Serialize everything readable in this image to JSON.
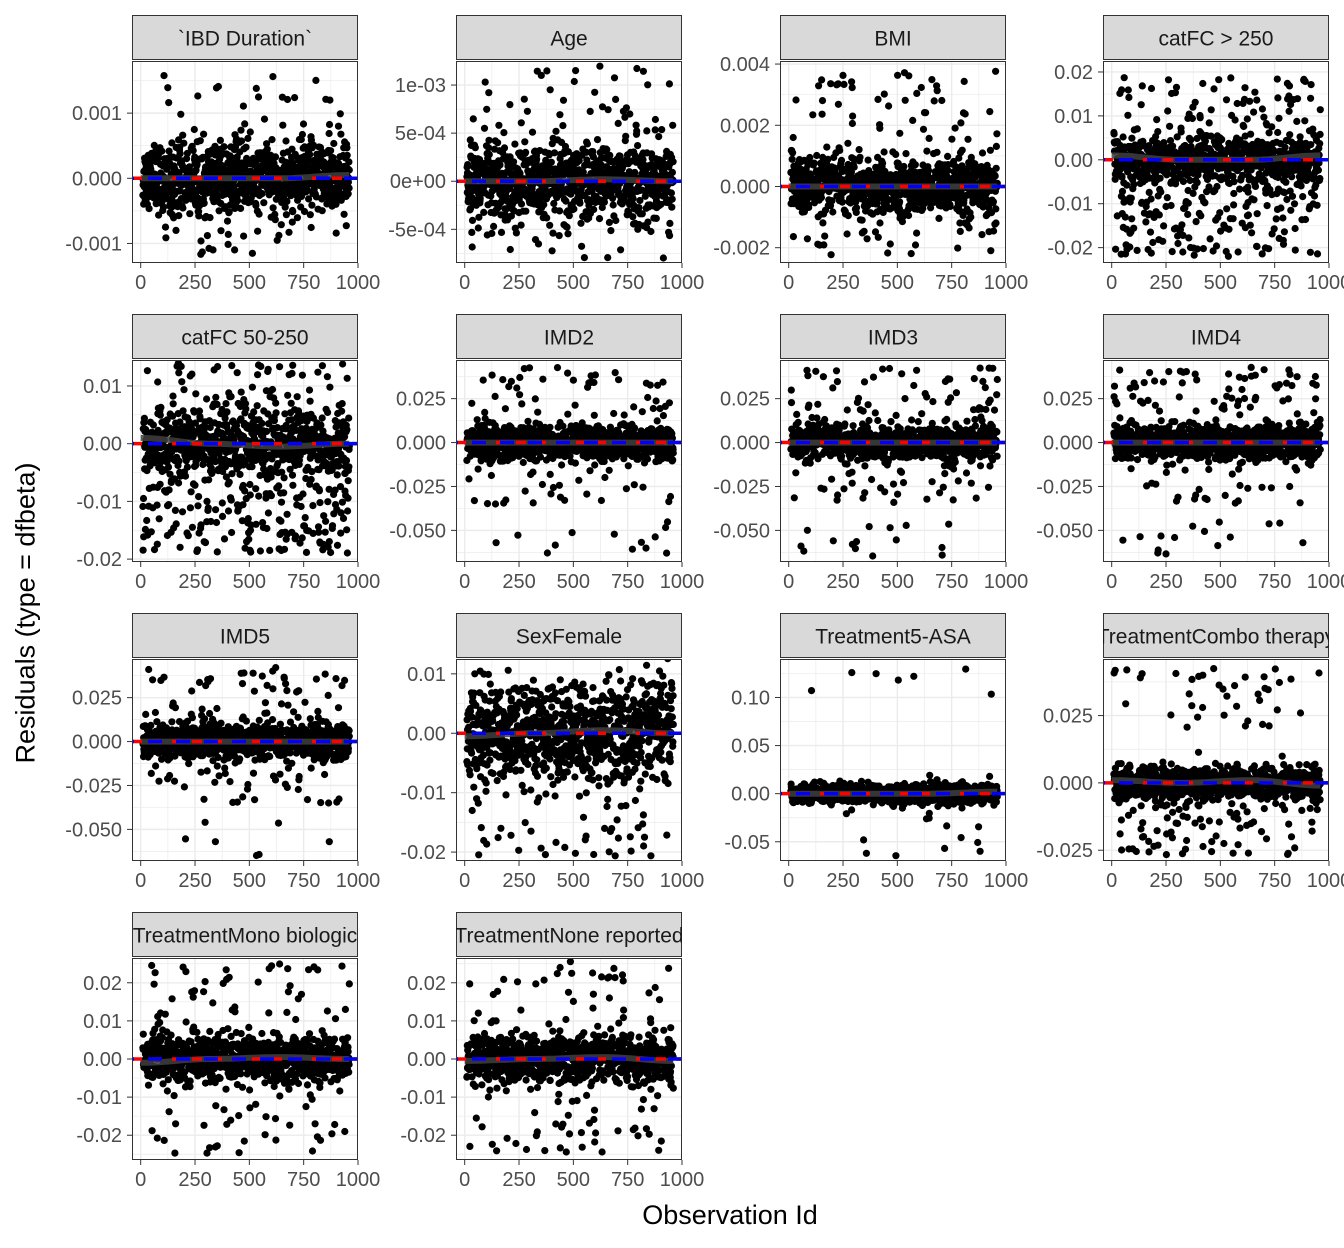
{
  "chart_data": {
    "type": "scatter",
    "xlabel": "Observation Id",
    "ylabel": "Residuals (type = dfbeta)",
    "grid": true,
    "n_observations": 960,
    "colors": {
      "points": "#000000",
      "zero_line": "#ff0000",
      "mean_line": "#0000ff",
      "smooth_line": "#404040",
      "strip_fill": "#d9d9d9",
      "strip_border": "#333333",
      "panel_border": "#333333",
      "grid": "#ebebeb"
    },
    "x_ticks": [
      0,
      250,
      500,
      750,
      1000
    ],
    "x_tick_labels": [
      "0",
      "250",
      "500",
      "750",
      "1000"
    ],
    "xlim": [
      -40,
      1000
    ],
    "panels": [
      {
        "title": "`IBD Duration`",
        "ylim": [
          -0.0013,
          0.0018
        ],
        "y_ticks": [
          -0.001,
          0.0,
          0.001
        ],
        "y_tick_labels": [
          "-0.001",
          "0.000",
          "0.001"
        ],
        "spread": 0.00025,
        "outlier_range": [
          -0.0012,
          0.0016
        ],
        "skew": "symmetric",
        "trend": [
          0.0,
          0.0,
          0.0,
          5e-05
        ]
      },
      {
        "title": "Age",
        "ylim": [
          -0.00085,
          0.00125
        ],
        "y_ticks": [
          -0.0005,
          0.0,
          0.0005,
          0.001
        ],
        "y_tick_labels": [
          "-5e-04",
          "0e+00",
          "5e-04",
          "1e-03"
        ],
        "spread": 0.00018,
        "outlier_range": [
          -0.0008,
          0.0012
        ],
        "skew": "symmetric",
        "trend": [
          0.0,
          0.0,
          2e-05,
          0.0
        ]
      },
      {
        "title": "BMI",
        "ylim": [
          -0.0025,
          0.0041
        ],
        "y_ticks": [
          -0.002,
          0.0,
          0.002,
          0.004
        ],
        "y_tick_labels": [
          "-0.002",
          "0.000",
          "0.002",
          "0.004"
        ],
        "spread": 0.00045,
        "outlier_range": [
          -0.0023,
          0.0039
        ],
        "skew": "symmetric",
        "trend": [
          0.0,
          0.0,
          0.0,
          0.0
        ]
      },
      {
        "title": "catFC > 250",
        "ylim": [
          -0.0235,
          0.0225
        ],
        "y_ticks": [
          -0.02,
          -0.01,
          0.0,
          0.01,
          0.02
        ],
        "y_tick_labels": [
          "-0.02",
          "-0.01",
          "0.00",
          "0.01",
          "0.02"
        ],
        "spread": 0.0025,
        "outlier_range": [
          -0.022,
          0.019
        ],
        "skew": "down",
        "trend": [
          0.001,
          0.0,
          0.0,
          0.001
        ]
      },
      {
        "title": "catFC 50-250",
        "ylim": [
          -0.0205,
          0.0145
        ],
        "y_ticks": [
          -0.02,
          -0.01,
          0.0,
          0.01
        ],
        "y_tick_labels": [
          "-0.02",
          "-0.01",
          "0.00",
          "0.01"
        ],
        "spread": 0.003,
        "outlier_range": [
          -0.019,
          0.014
        ],
        "skew": "down",
        "trend": [
          0.001,
          0.0,
          -0.0005,
          0.0
        ]
      },
      {
        "title": "IMD2",
        "ylim": [
          -0.068,
          0.047
        ],
        "y_ticks": [
          -0.05,
          -0.025,
          0.0,
          0.025
        ],
        "y_tick_labels": [
          "-0.050",
          "-0.025",
          "0.000",
          "0.025"
        ],
        "spread": 0.005,
        "outlier_range": [
          -0.065,
          0.043
        ],
        "skew": "imd",
        "trend": [
          0.0,
          0.0,
          0.0,
          0.0
        ]
      },
      {
        "title": "IMD3",
        "ylim": [
          -0.068,
          0.047
        ],
        "y_ticks": [
          -0.05,
          -0.025,
          0.0,
          0.025
        ],
        "y_tick_labels": [
          "-0.050",
          "-0.025",
          "0.000",
          "0.025"
        ],
        "spread": 0.005,
        "outlier_range": [
          -0.065,
          0.043
        ],
        "skew": "imd",
        "trend": [
          0.0,
          0.0,
          0.0,
          0.0
        ]
      },
      {
        "title": "IMD4",
        "ylim": [
          -0.068,
          0.047
        ],
        "y_ticks": [
          -0.05,
          -0.025,
          0.0,
          0.025
        ],
        "y_tick_labels": [
          "-0.050",
          "-0.025",
          "0.000",
          "0.025"
        ],
        "spread": 0.005,
        "outlier_range": [
          -0.065,
          0.043
        ],
        "skew": "imd",
        "trend": [
          0.0,
          0.0,
          0.0,
          0.0
        ]
      },
      {
        "title": "IMD5",
        "ylim": [
          -0.068,
          0.047
        ],
        "y_ticks": [
          -0.05,
          -0.025,
          0.0,
          0.025
        ],
        "y_tick_labels": [
          "-0.050",
          "-0.025",
          "0.000",
          "0.025"
        ],
        "spread": 0.005,
        "outlier_range": [
          -0.065,
          0.043
        ],
        "skew": "imd",
        "trend": [
          0.0,
          0.0,
          0.0,
          0.0
        ]
      },
      {
        "title": "SexFemale",
        "ylim": [
          -0.0215,
          0.0125
        ],
        "y_ticks": [
          -0.02,
          -0.01,
          0.0,
          0.01
        ],
        "y_tick_labels": [
          "-0.02",
          "-0.01",
          "0.00",
          "0.01"
        ],
        "spread": 0.004,
        "outlier_range": [
          -0.021,
          0.011
        ],
        "skew": "symmetric",
        "trend": [
          -0.0005,
          0.0,
          0.0005,
          0.0
        ]
      },
      {
        "title": "Treatment5-ASA",
        "ylim": [
          -0.07,
          0.14
        ],
        "y_ticks": [
          -0.05,
          0.0,
          0.05,
          0.1
        ],
        "y_tick_labels": [
          "-0.05",
          "0.00",
          "0.05",
          "0.10"
        ],
        "spread": 0.005,
        "outlier_range": [
          -0.065,
          0.13
        ],
        "skew": "asa",
        "trend": [
          0.0,
          0.0,
          0.0,
          0.002
        ]
      },
      {
        "title": "TreatmentCombo therapy",
        "ylim": [
          -0.029,
          0.046
        ],
        "y_ticks": [
          -0.025,
          0.0,
          0.025
        ],
        "y_tick_labels": [
          "-0.025",
          "0.000",
          "0.025"
        ],
        "spread": 0.003,
        "outlier_range": [
          -0.027,
          0.044
        ],
        "skew": "up",
        "trend": [
          0.001,
          0.0,
          0.001,
          -0.001
        ]
      },
      {
        "title": "TreatmentMono biologic",
        "ylim": [
          -0.0265,
          0.0265
        ],
        "y_ticks": [
          -0.02,
          -0.01,
          0.0,
          0.01,
          0.02
        ],
        "y_tick_labels": [
          "-0.02",
          "-0.01",
          "0.00",
          "0.01",
          "0.02"
        ],
        "spread": 0.003,
        "outlier_range": [
          -0.025,
          0.025
        ],
        "skew": "symmetric",
        "trend": [
          -0.001,
          0.0,
          0.0005,
          0.0
        ]
      },
      {
        "title": "TreatmentNone reported",
        "ylim": [
          -0.0265,
          0.0265
        ],
        "y_ticks": [
          -0.02,
          -0.01,
          0.0,
          0.01,
          0.02
        ],
        "y_tick_labels": [
          "-0.02",
          "-0.01",
          "0.00",
          "0.01",
          "0.02"
        ],
        "spread": 0.003,
        "outlier_range": [
          -0.025,
          0.026
        ],
        "skew": "symmetric",
        "trend": [
          -0.0005,
          0.0,
          0.0005,
          -0.0005
        ]
      }
    ]
  }
}
